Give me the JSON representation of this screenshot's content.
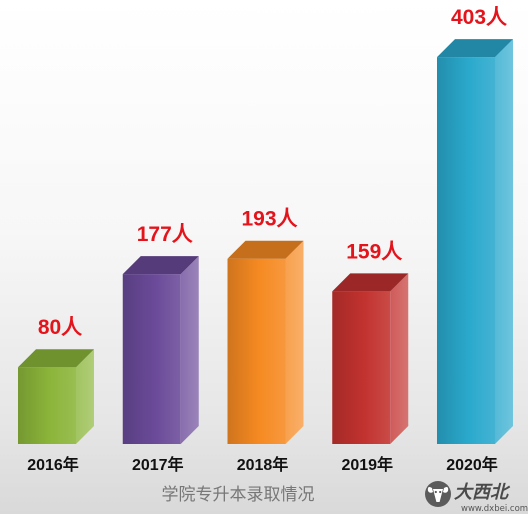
{
  "chart_data": {
    "type": "bar",
    "title": "学院专升本录取情况",
    "xlabel": "",
    "ylabel": "",
    "categories": [
      "2016年",
      "2017年",
      "2018年",
      "2019年",
      "2020年"
    ],
    "values": [
      80,
      177,
      193,
      159,
      403
    ],
    "data_labels": [
      "80人",
      "177人",
      "193人",
      "159人",
      "403人"
    ],
    "grid": false,
    "colors": [
      "#8bb53a",
      "#6a4a99",
      "#f68a22",
      "#c2322f",
      "#2aa9cd"
    ],
    "data_label_color": "#e3141b"
  },
  "watermark": {
    "brand": "大西北",
    "url": "www.dxbei.com",
    "logo_icon": "ram-head-icon"
  }
}
